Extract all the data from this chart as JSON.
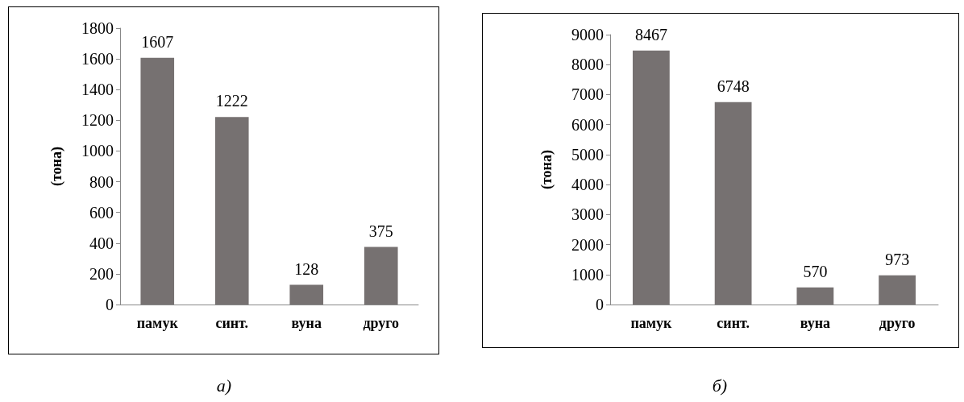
{
  "chart_data": [
    {
      "type": "bar",
      "categories": [
        "памук",
        "синт.",
        "вуна",
        "друго"
      ],
      "values": [
        1607,
        1222,
        128,
        375
      ],
      "color": "#767171",
      "ylabel": "(тона)",
      "ylim": [
        0,
        1800
      ],
      "yticks": [
        0,
        200,
        400,
        600,
        800,
        1000,
        1200,
        1400,
        1600,
        1800
      ],
      "data_labels": true,
      "grid": false,
      "annotations": [
        "а)"
      ]
    },
    {
      "type": "bar",
      "categories": [
        "памук",
        "синт.",
        "вуна",
        "друго"
      ],
      "values": [
        8467,
        6748,
        570,
        973
      ],
      "color": "#767171",
      "ylabel": "(тона)",
      "ylim": [
        0,
        9000
      ],
      "yticks": [
        0,
        1000,
        2000,
        3000,
        4000,
        5000,
        6000,
        7000,
        8000,
        9000
      ],
      "data_labels": true,
      "grid": false,
      "annotations": [
        "б)"
      ]
    }
  ]
}
